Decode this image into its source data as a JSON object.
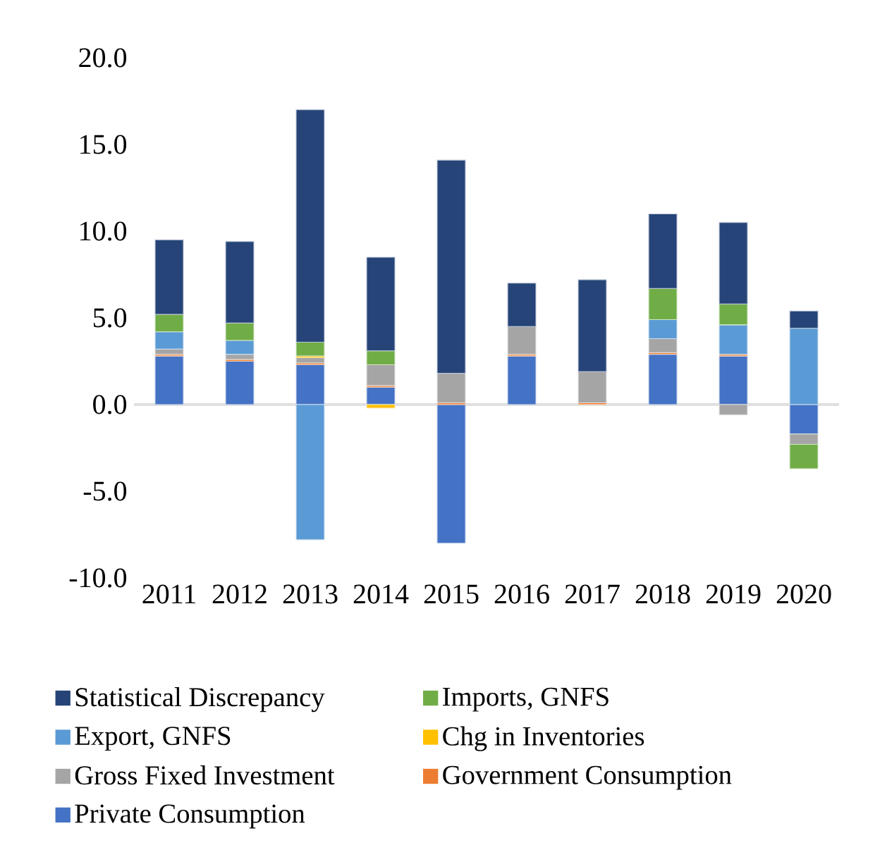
{
  "chart_data": {
    "type": "bar",
    "stacked": true,
    "legend": "bottom",
    "categories": [
      "2011",
      "2012",
      "2013",
      "2014",
      "2015",
      "2016",
      "2017",
      "2018",
      "2019",
      "2020"
    ],
    "ylim": [
      -10,
      20
    ],
    "yticks": [
      {
        "value": -10,
        "label": "-10.0"
      },
      {
        "value": -5,
        "label": "-5.0"
      },
      {
        "value": 0,
        "label": "0.0"
      },
      {
        "value": 5,
        "label": "5.0"
      },
      {
        "value": 10,
        "label": "10.0"
      },
      {
        "value": 15,
        "label": "15.0"
      },
      {
        "value": 20,
        "label": "20.0"
      }
    ],
    "series": [
      {
        "name": "Private Consumption",
        "color": "#4472c4",
        "values": [
          2.8,
          2.5,
          2.3,
          1.0,
          -8.0,
          2.8,
          null,
          2.9,
          2.8,
          -1.7
        ]
      },
      {
        "name": "Government Consumption",
        "color": "#ed7d31",
        "values": [
          0.1,
          0.1,
          0.1,
          0.1,
          0.1,
          0.1,
          0.1,
          0.1,
          0.1,
          null
        ]
      },
      {
        "name": "Gross Fixed Investment",
        "color": "#a5a5a5",
        "values": [
          0.3,
          0.3,
          0.3,
          1.2,
          1.7,
          1.6,
          1.8,
          0.8,
          -0.6,
          -0.6
        ]
      },
      {
        "name": "Chg in Inventories",
        "color": "#ffc000",
        "values": [
          null,
          null,
          0.1,
          -0.2,
          null,
          null,
          null,
          null,
          null,
          null
        ]
      },
      {
        "name": "Export, GNFS",
        "color": "#5b9bd5",
        "values": [
          1.0,
          0.8,
          -7.8,
          null,
          null,
          null,
          null,
          1.1,
          1.7,
          4.4
        ]
      },
      {
        "name": "Imports, GNFS",
        "color": "#70ad47",
        "values": [
          1.0,
          1.0,
          0.8,
          0.8,
          null,
          null,
          null,
          1.8,
          1.2,
          -1.4
        ]
      },
      {
        "name": "Statistical Discrepancy",
        "color": "#264478",
        "values": [
          4.3,
          4.7,
          13.4,
          5.4,
          12.3,
          2.5,
          5.3,
          4.3,
          4.7,
          1.0
        ]
      }
    ]
  }
}
